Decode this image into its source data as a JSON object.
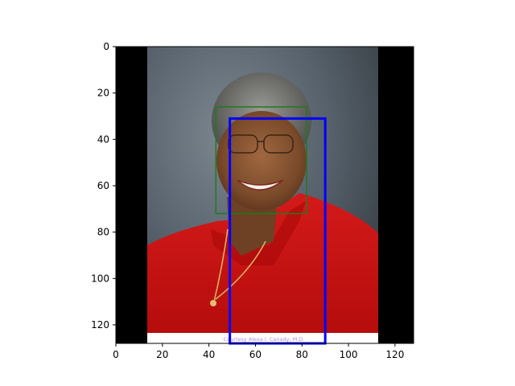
{
  "image": {
    "subject": "portrait",
    "credit_text": "Courtesy Alexa I. Canady, M.D."
  },
  "axes": {
    "xlim": [
      0,
      128
    ],
    "ylim": [
      128,
      0
    ],
    "x_ticks": [
      "0",
      "20",
      "40",
      "60",
      "80",
      "100",
      "120"
    ],
    "y_ticks": [
      "0",
      "20",
      "40",
      "60",
      "80",
      "100",
      "120"
    ]
  },
  "boxes": [
    {
      "label": "",
      "color": "#1f7a1f",
      "x0": 43,
      "y0": 26,
      "x1": 82,
      "y1": 72
    },
    {
      "label": "",
      "color": "#0000ff",
      "x0": 49,
      "y0": 31,
      "x1": 90,
      "y1": 128
    }
  ]
}
